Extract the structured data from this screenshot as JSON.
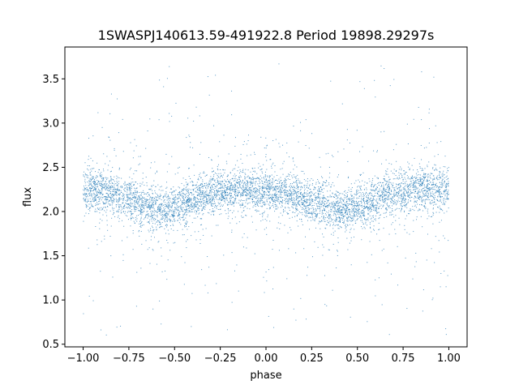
{
  "chart_data": {
    "type": "scatter",
    "title": "1SWASPJ140613.59-491922.8 Period 19898.29297s",
    "xlabel": "phase",
    "ylabel": "flux",
    "xlim": [
      -1.1,
      1.1
    ],
    "ylim": [
      0.47,
      3.86
    ],
    "xticks": [
      {
        "value": -1.0,
        "label": "−1.00"
      },
      {
        "value": -0.75,
        "label": "−0.75"
      },
      {
        "value": -0.5,
        "label": "−0.50"
      },
      {
        "value": -0.25,
        "label": "−0.25"
      },
      {
        "value": 0.0,
        "label": "0.00"
      },
      {
        "value": 0.25,
        "label": "0.25"
      },
      {
        "value": 0.5,
        "label": "0.50"
      },
      {
        "value": 0.75,
        "label": "0.75"
      },
      {
        "value": 1.0,
        "label": "1.00"
      }
    ],
    "yticks": [
      {
        "value": 0.5,
        "label": "0.5"
      },
      {
        "value": 1.0,
        "label": "1.0"
      },
      {
        "value": 1.5,
        "label": "1.5"
      },
      {
        "value": 2.0,
        "label": "2.0"
      },
      {
        "value": 2.5,
        "label": "2.5"
      },
      {
        "value": 3.0,
        "label": "3.0"
      },
      {
        "value": 3.5,
        "label": "3.5"
      }
    ],
    "grid": false,
    "legend": "none",
    "point_color": "#1f77b4",
    "series": [
      {
        "x": [
          -1.0,
          -0.95,
          -0.9,
          -0.85,
          -0.8,
          -0.75,
          -0.7,
          -0.65,
          -0.6,
          -0.55,
          -0.5,
          -0.45,
          -0.4,
          -0.35,
          -0.3,
          -0.25,
          -0.2,
          -0.15,
          -0.1,
          -0.05,
          0.0,
          0.05,
          0.1,
          0.15,
          0.2,
          0.25,
          0.3,
          0.35,
          0.4,
          0.45,
          0.5,
          0.55,
          0.6,
          0.65,
          0.7,
          0.75,
          0.8,
          0.85,
          0.9,
          0.95,
          1.0
        ],
        "y": [
          2.25,
          2.24,
          2.22,
          2.2,
          2.17,
          2.14,
          2.1,
          2.06,
          2.03,
          2.02,
          2.04,
          2.08,
          2.13,
          2.18,
          2.22,
          2.24,
          2.25,
          2.25,
          2.25,
          2.24,
          2.24,
          2.22,
          2.2,
          2.17,
          2.14,
          2.1,
          2.06,
          2.03,
          2.02,
          2.03,
          2.06,
          2.1,
          2.14,
          2.18,
          2.21,
          2.23,
          2.24,
          2.25,
          2.25,
          2.25,
          2.25
        ]
      }
    ]
  }
}
